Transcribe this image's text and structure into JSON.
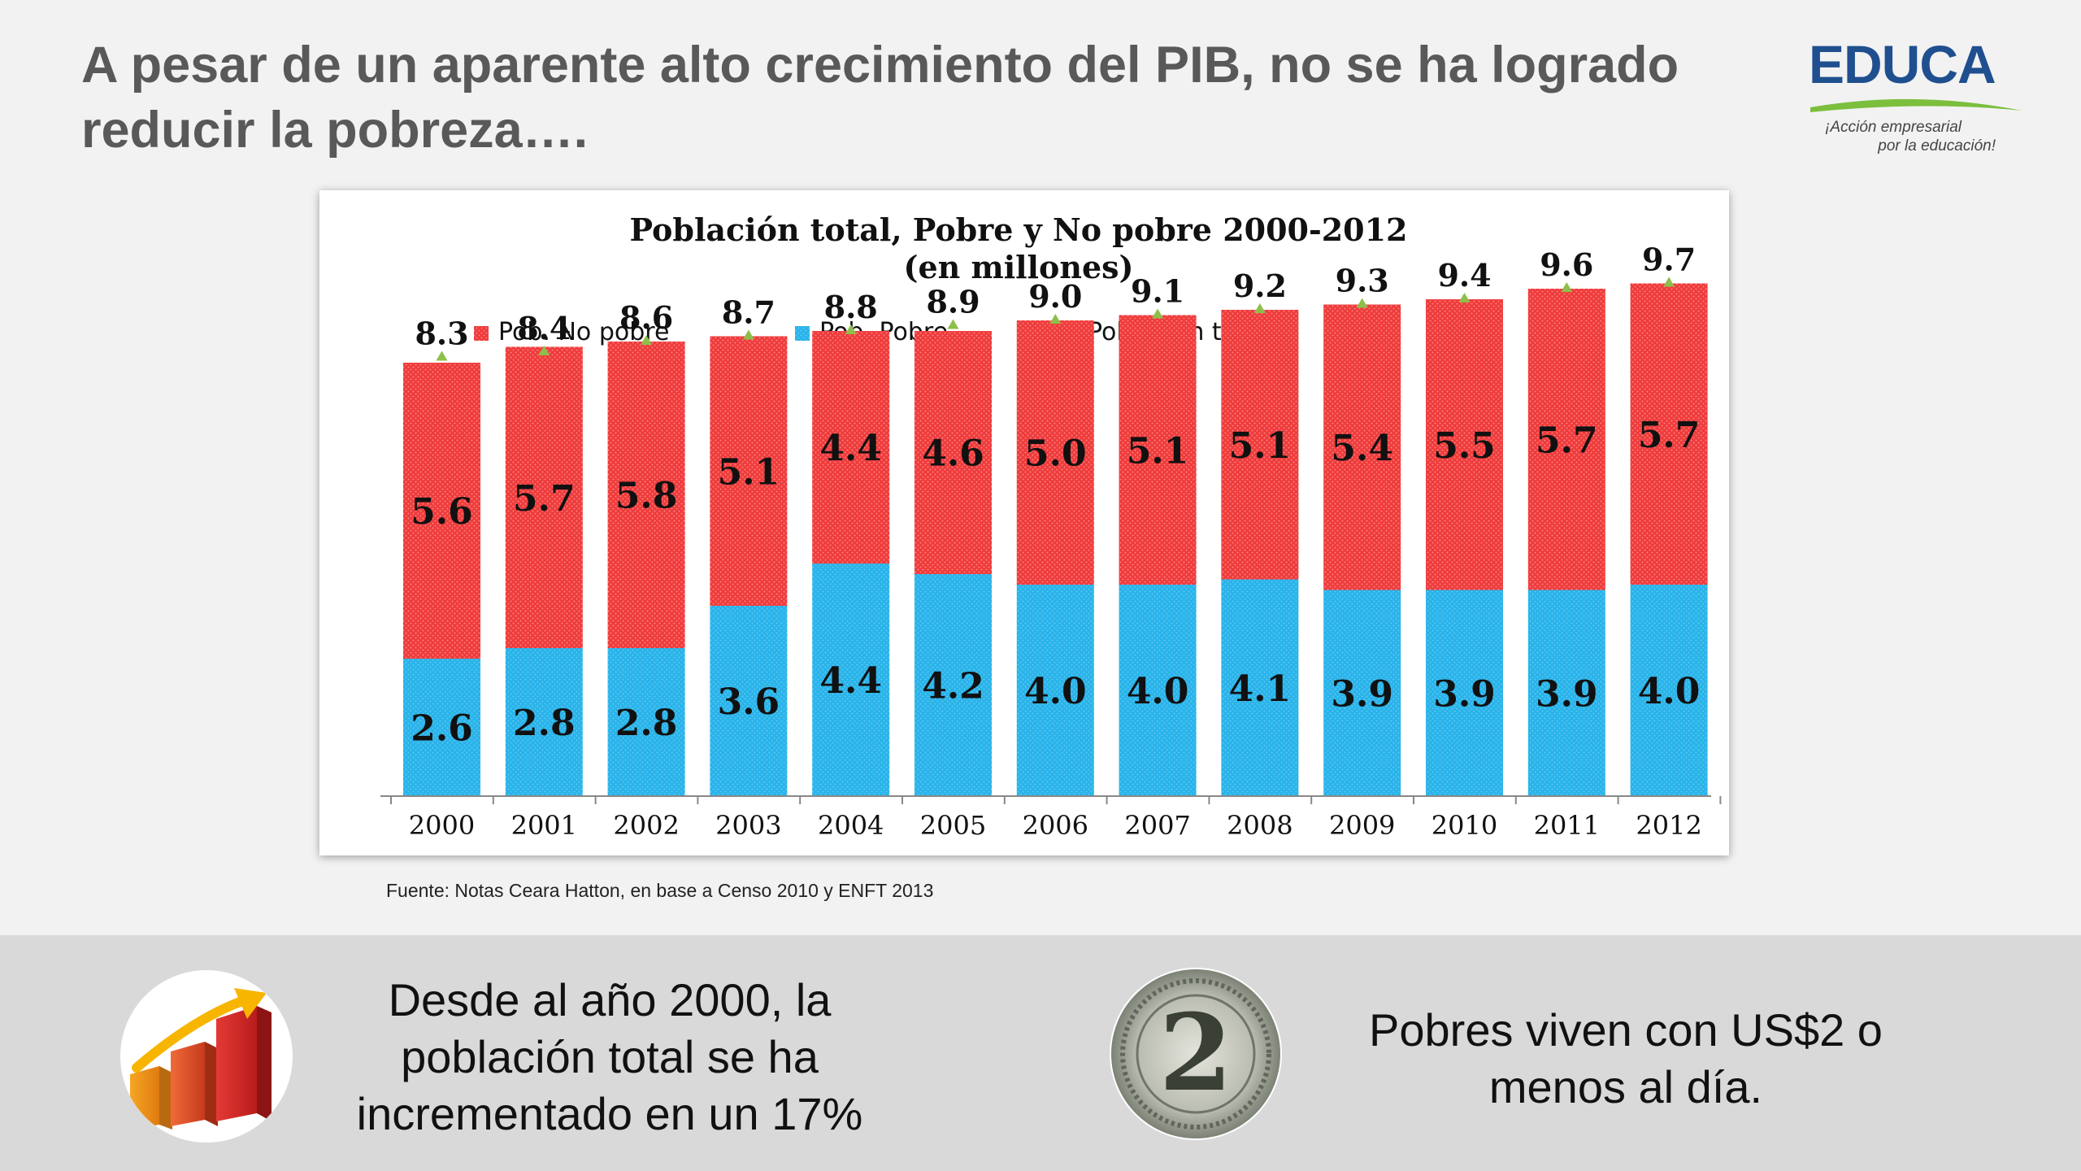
{
  "header": {
    "title": "A pesar de un aparente alto crecimiento del PIB, no se ha logrado reducir la pobreza….",
    "logo_text": "EDUCA",
    "logo_tagline_1": "¡Acción empresarial",
    "logo_tagline_2": "por la educación!"
  },
  "chart_data": {
    "type": "bar",
    "stacked": true,
    "title": "Población total, Pobre y No pobre  2000-2012",
    "subtitle": "(en millones)",
    "categories": [
      "2000",
      "2001",
      "2002",
      "2003",
      "2004",
      "2005",
      "2006",
      "2007",
      "2008",
      "2009",
      "2010",
      "2011",
      "2012"
    ],
    "series": [
      {
        "name": "Pob. Pobre",
        "color": "#29b3ea",
        "values": [
          2.6,
          2.8,
          2.8,
          3.6,
          4.4,
          4.2,
          4.0,
          4.0,
          4.1,
          3.9,
          3.9,
          3.9,
          4.0
        ]
      },
      {
        "name": "Pob. No pobre",
        "color": "#ee3b3b",
        "values": [
          5.6,
          5.7,
          5.8,
          5.1,
          4.4,
          4.6,
          5.0,
          5.1,
          5.1,
          5.4,
          5.5,
          5.7,
          5.7
        ]
      }
    ],
    "total": {
      "name": "Población total",
      "color": "#8dbf4a",
      "values": [
        8.3,
        8.4,
        8.6,
        8.7,
        8.8,
        8.9,
        9.0,
        9.1,
        9.2,
        9.3,
        9.4,
        9.6,
        9.7
      ]
    },
    "legend_order": [
      "Pob. No pobre",
      "Pob. Pobre",
      "Población total"
    ],
    "legend_position": "top",
    "ylim": [
      0,
      10
    ],
    "grid": false
  },
  "source_note": "Fuente: Notas Ceara Hatton, en base a Censo 2010 y ENFT 2013",
  "bottom": {
    "left_text_lines": [
      "Desde al año 2000, la",
      "población total se ha",
      "incrementado en un 17%"
    ],
    "right_text_lines": [
      "Pobres viven con US$2 o",
      "menos al día."
    ],
    "left_icon": "growth-chart-icon",
    "right_icon": "two-dollar-bill-icon"
  }
}
